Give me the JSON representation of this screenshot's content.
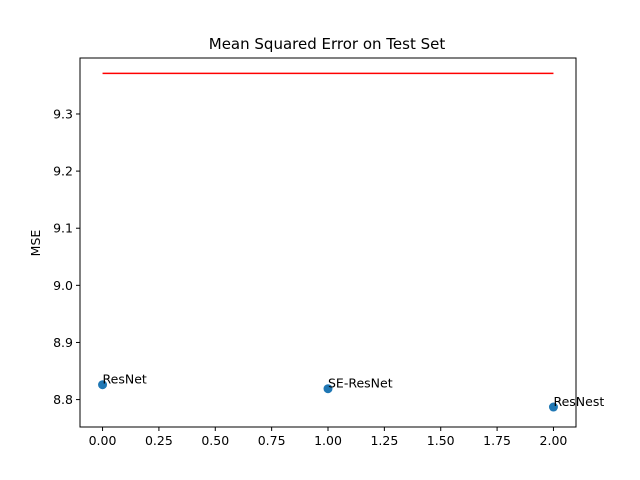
{
  "chart_data": {
    "type": "scatter",
    "title": "Mean Squared Error on Test Set",
    "xlabel": "",
    "ylabel": "MSE",
    "xlim": [
      -0.1,
      2.1
    ],
    "ylim": [
      8.752,
      9.398
    ],
    "xticks": [
      0.0,
      0.25,
      0.5,
      0.75,
      1.0,
      1.25,
      1.5,
      1.75,
      2.0
    ],
    "xtick_labels": [
      "0.00",
      "0.25",
      "0.50",
      "0.75",
      "1.00",
      "1.25",
      "1.50",
      "1.75",
      "2.00"
    ],
    "yticks": [
      8.8,
      8.9,
      9.0,
      9.1,
      9.2,
      9.3
    ],
    "ytick_labels": [
      "8.8",
      "8.9",
      "9.0",
      "9.1",
      "9.2",
      "9.3"
    ],
    "grid": false,
    "series": [
      {
        "type": "scatter",
        "color": "#1f77b4",
        "points": [
          {
            "x": 0,
            "y": 8.826,
            "label": "ResNet"
          },
          {
            "x": 1,
            "y": 8.819,
            "label": "SE-ResNet"
          },
          {
            "x": 2,
            "y": 8.787,
            "label": "ResNest"
          }
        ]
      },
      {
        "type": "line",
        "color": "#ff0000",
        "x": [
          0,
          2
        ],
        "y": [
          9.371,
          9.371
        ]
      }
    ]
  }
}
